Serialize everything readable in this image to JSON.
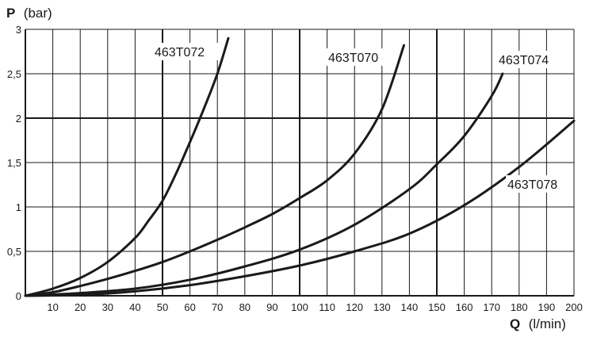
{
  "chart_data": {
    "type": "line",
    "ylabel_symbol": "P",
    "ylabel_unit": "(bar)",
    "xlabel_symbol": "Q",
    "xlabel_unit": "(l/min)",
    "xlim": [
      0,
      200
    ],
    "ylim": [
      0,
      3
    ],
    "x_ticks": [
      "10",
      "20",
      "30",
      "40",
      "50",
      "60",
      "70",
      "80",
      "90",
      "100",
      "110",
      "120",
      "130",
      "140",
      "150",
      "160",
      "170",
      "180",
      "190",
      "200"
    ],
    "y_ticks": [
      "0",
      "0,5",
      "1",
      "1,5",
      "2",
      "2,5",
      "3"
    ],
    "x_tick_values": [
      10,
      20,
      30,
      40,
      50,
      60,
      70,
      80,
      90,
      100,
      110,
      120,
      130,
      140,
      150,
      160,
      170,
      180,
      190,
      200
    ],
    "y_tick_values": [
      0,
      0.5,
      1,
      1.5,
      2,
      2.5,
      3
    ],
    "grid": true,
    "major_grid_x": [
      50,
      100,
      150
    ],
    "major_grid_y": [
      2
    ],
    "series": [
      {
        "name": "463T072",
        "x": [
          0,
          10,
          20,
          30,
          40,
          45,
          50,
          55,
          60,
          65,
          70,
          74
        ],
        "y": [
          0,
          0.08,
          0.2,
          0.38,
          0.65,
          0.85,
          1.07,
          1.38,
          1.73,
          2.1,
          2.5,
          2.9
        ]
      },
      {
        "name": "463T070",
        "x": [
          0,
          10,
          20,
          30,
          40,
          50,
          60,
          70,
          80,
          90,
          100,
          110,
          120,
          130,
          138
        ],
        "y": [
          0,
          0.04,
          0.11,
          0.19,
          0.28,
          0.38,
          0.5,
          0.63,
          0.77,
          0.92,
          1.1,
          1.3,
          1.6,
          2.1,
          2.82
        ]
      },
      {
        "name": "463T074",
        "x": [
          0,
          20,
          40,
          60,
          80,
          100,
          120,
          140,
          150,
          160,
          170,
          174
        ],
        "y": [
          0,
          0.03,
          0.08,
          0.18,
          0.33,
          0.52,
          0.8,
          1.2,
          1.48,
          1.8,
          2.25,
          2.5
        ]
      },
      {
        "name": "463T078",
        "x": [
          0,
          20,
          40,
          60,
          80,
          100,
          120,
          140,
          160,
          180,
          200
        ],
        "y": [
          0,
          0.01,
          0.05,
          0.12,
          0.22,
          0.34,
          0.5,
          0.7,
          1.02,
          1.45,
          1.97
        ]
      }
    ]
  }
}
